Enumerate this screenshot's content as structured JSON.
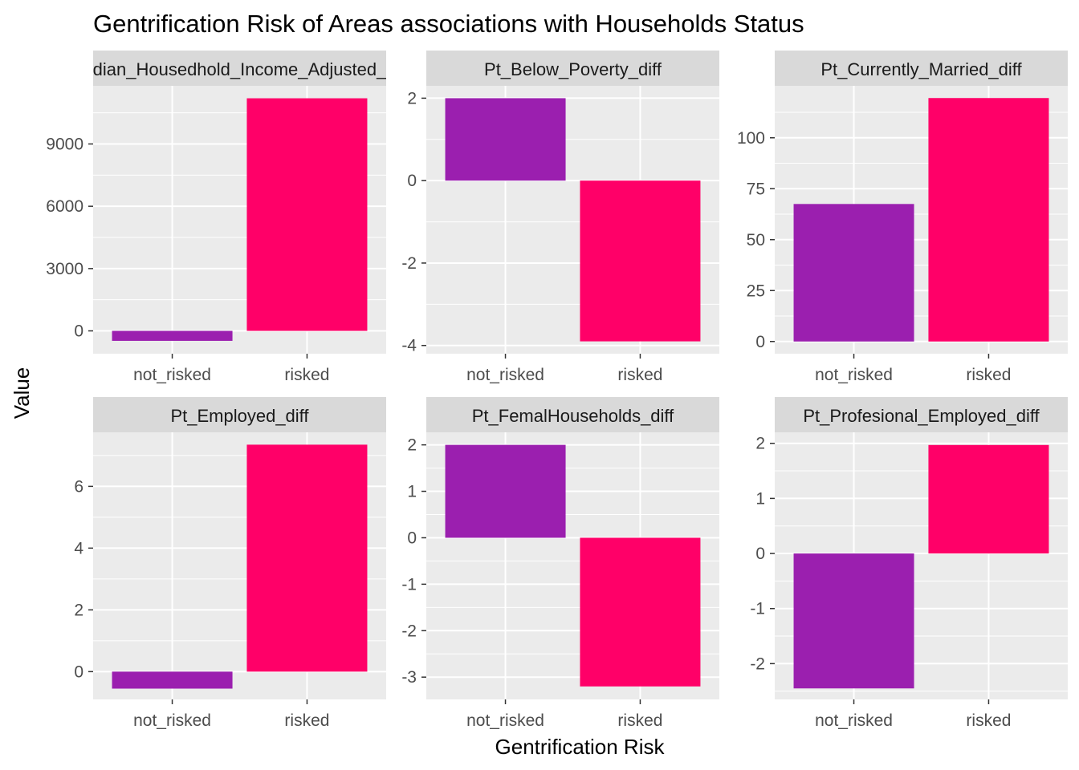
{
  "chart_title": "Gentrification Risk of Areas associations with Households Status",
  "x_axis_title": "Gentrification Risk",
  "y_axis_title": "Value",
  "colors": {
    "not_risked": "#9B1FAF",
    "risked": "#FF0068",
    "panel_bg": "#EBEBEB",
    "strip_bg": "#D9D9D9",
    "grid": "#FFFFFF",
    "axis_text": "#4D4D4D",
    "text": "#000000"
  },
  "chart_data": [
    {
      "type": "bar",
      "facet_label": "Median_Housedhold_Income_Adjusted_diff",
      "facet_label_visible": "dian_Housedhold_Income_Adjusted_",
      "categories": [
        "not_risked",
        "risked"
      ],
      "values": [
        -480,
        11200
      ],
      "yticks": [
        0,
        3000,
        6000,
        9000
      ],
      "ylim": [
        -1100,
        11800
      ],
      "grid": true
    },
    {
      "type": "bar",
      "facet_label": "Pt_Below_Poverty_diff",
      "categories": [
        "not_risked",
        "risked"
      ],
      "values": [
        2.0,
        -3.9
      ],
      "yticks": [
        -4,
        -2,
        0,
        2
      ],
      "ylim": [
        -4.2,
        2.3
      ],
      "grid": true
    },
    {
      "type": "bar",
      "facet_label": "Pt_Currently_Married_diff",
      "categories": [
        "not_risked",
        "risked"
      ],
      "values": [
        67.5,
        119.5
      ],
      "yticks": [
        0,
        25,
        50,
        75,
        100
      ],
      "ylim": [
        -6,
        125.5
      ],
      "grid": true
    },
    {
      "type": "bar",
      "facet_label": "Pt_Employed_diff",
      "categories": [
        "not_risked",
        "risked"
      ],
      "values": [
        -0.55,
        7.35
      ],
      "yticks": [
        0,
        2,
        4,
        6
      ],
      "ylim": [
        -0.9,
        7.75
      ],
      "grid": true
    },
    {
      "type": "bar",
      "facet_label": "Pt_FemalHouseholds_diff",
      "categories": [
        "not_risked",
        "risked"
      ],
      "values": [
        2.0,
        -3.2
      ],
      "yticks": [
        -3,
        -2,
        -1,
        0,
        1,
        2
      ],
      "ylim": [
        -3.48,
        2.27
      ],
      "grid": true
    },
    {
      "type": "bar",
      "facet_label": "Pt_Profesional_Employed_diff",
      "categories": [
        "not_risked",
        "risked"
      ],
      "values": [
        -2.45,
        1.97
      ],
      "yticks": [
        -2,
        -1,
        0,
        1,
        2
      ],
      "ylim": [
        -2.65,
        2.2
      ],
      "grid": true
    }
  ]
}
